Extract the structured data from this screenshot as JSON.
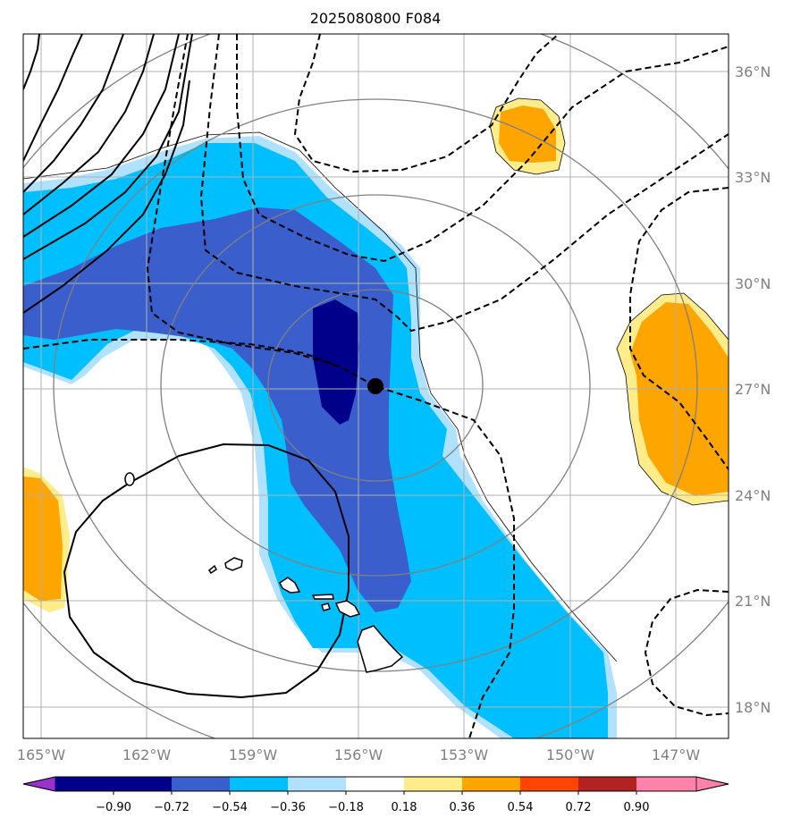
{
  "chart_data": {
    "type": "heatmap",
    "title": "2025080800 F084",
    "projection": "lat-lon map",
    "lon_ticks": [
      "165°W",
      "162°W",
      "159°W",
      "156°W",
      "153°W",
      "150°W",
      "147°W"
    ],
    "lat_ticks": [
      "36°N",
      "33°N",
      "30°N",
      "27°N",
      "24°N",
      "21°N",
      "18°N"
    ],
    "extent": {
      "lon": [
        -165.5,
        -145.5
      ],
      "lat": [
        17,
        37
      ]
    },
    "center_marker": {
      "lon": -155.0,
      "lat": 27.1
    },
    "range_rings": {
      "count": 4,
      "color": "#808080"
    },
    "grid": true,
    "colorbar": {
      "orientation": "horizontal",
      "position": "bottom",
      "ticks": [
        "−0.90",
        "−0.72",
        "−0.54",
        "−0.36",
        "−0.18",
        "0.18",
        "0.36",
        "0.54",
        "0.72",
        "0.90"
      ],
      "colors": [
        "#9932cc",
        "#00008b",
        "#3a5fcd",
        "#00bfff",
        "#b0e2ff",
        "#ffffff",
        "#ffec8b",
        "#ffa500",
        "#ff4500",
        "#b22222",
        "#ff82ab"
      ]
    },
    "contour_label": "0",
    "fields": [
      {
        "name": "main-negative-band",
        "levels": [
          "−0.36",
          "−0.54",
          "−0.72"
        ]
      },
      {
        "name": "positive-blob-north",
        "levels": [
          "0.36",
          "0.54"
        ]
      },
      {
        "name": "positive-blob-east",
        "levels": [
          "0.36",
          "0.54"
        ]
      },
      {
        "name": "positive-blob-west",
        "levels": [
          "0.36",
          "0.54"
        ]
      }
    ]
  }
}
